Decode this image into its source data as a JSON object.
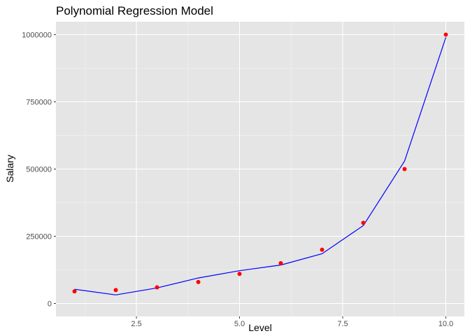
{
  "chart_data": {
    "type": "scatter",
    "title": "Polynomial Regression Model",
    "xlabel": "Level",
    "ylabel": "Salary",
    "xlim": [
      0.55,
      10.45
    ],
    "ylim": [
      -48000,
      1048000
    ],
    "x_ticks": [
      2.5,
      5.0,
      7.5,
      10.0
    ],
    "x_tick_labels": [
      "2.5",
      "5.0",
      "7.5",
      "10.0"
    ],
    "y_ticks": [
      0,
      250000,
      500000,
      750000,
      1000000
    ],
    "y_tick_labels": [
      "0",
      "250000",
      "500000",
      "750000",
      "1000000"
    ],
    "grid": true,
    "legend": "none",
    "series": [
      {
        "kind": "points",
        "color": "#ff0000",
        "x": [
          1,
          2,
          3,
          4,
          5,
          6,
          7,
          8,
          9,
          10
        ],
        "y": [
          45000,
          50000,
          60000,
          80000,
          110000,
          150000,
          200000,
          300000,
          500000,
          1000000
        ]
      },
      {
        "kind": "line",
        "color": "#0000ff",
        "x": [
          1,
          2,
          3,
          4,
          5,
          6,
          7,
          8,
          9,
          10
        ],
        "y": [
          53000,
          32000,
          58000,
          95000,
          122000,
          143000,
          185000,
          290000,
          530000,
          990000
        ]
      }
    ]
  }
}
